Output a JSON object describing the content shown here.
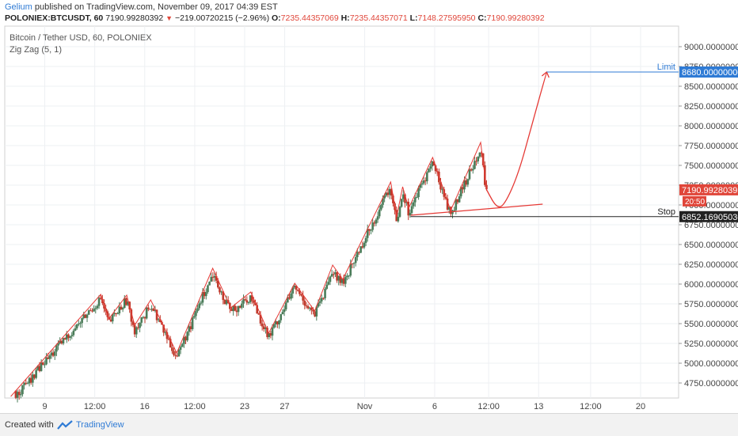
{
  "header": {
    "author": "Gelium",
    "published_text": "published on TradingView.com, November 09, 2017 04:39 EST",
    "symbol": "POLONIEX:BTCUSDT, 60",
    "last_price": "7190.99280392",
    "change_arrow": "▼",
    "change": "−219.00720215 (−2.96%)",
    "o_label": "O:",
    "o_value": "7235.44357069",
    "h_label": "H:",
    "h_value": "7235.44357071",
    "l_label": "L:",
    "l_value": "7148.27595950",
    "c_label": "C:",
    "c_value": "7190.99280392"
  },
  "legend": {
    "series": "Bitcoin / Tether USD, 60, POLONIEX",
    "indicator": "Zig Zag (5, 1)"
  },
  "footer": {
    "created_with": "Created with",
    "brand": "TradingView"
  },
  "colors": {
    "up": "#4a7c59",
    "down": "#c0392b",
    "zigzag": "#e53935",
    "limit": "#2f7bd5",
    "stop": "#222222",
    "last": "#e0463a"
  },
  "chart_data": {
    "type": "line",
    "title": "Bitcoin / Tether USD, 60, POLONIEX",
    "ylim": [
      4580,
      9120
    ],
    "y_ticks": [
      {
        "v": 9000,
        "label": "9000.00000000"
      },
      {
        "v": 8750,
        "label": "8750.00000000"
      },
      {
        "v": 8500,
        "label": "8500.00000000"
      },
      {
        "v": 8250,
        "label": "8250.00000000"
      },
      {
        "v": 8000,
        "label": "8000.00000000"
      },
      {
        "v": 7750,
        "label": "7750.00000000"
      },
      {
        "v": 7500,
        "label": "7500.00000000"
      },
      {
        "v": 7250,
        "label": "7250.00000000"
      },
      {
        "v": 7000,
        "label": "7000.00000000"
      },
      {
        "v": 6750,
        "label": "6750.00000000"
      },
      {
        "v": 6500,
        "label": "6500.00000000"
      },
      {
        "v": 6250,
        "label": "6250.00000000"
      },
      {
        "v": 6000,
        "label": "6000.00000000"
      },
      {
        "v": 5750,
        "label": "5750.00000000"
      },
      {
        "v": 5500,
        "label": "5500.00000000"
      },
      {
        "v": 5250,
        "label": "5250.00000000"
      },
      {
        "v": 5000,
        "label": "5000.00000000"
      },
      {
        "v": 4750,
        "label": "4750.00000000"
      }
    ],
    "x_ticks": [
      {
        "t": 2,
        "label": "9"
      },
      {
        "t": 4.5,
        "label": "12:00"
      },
      {
        "t": 7,
        "label": "16"
      },
      {
        "t": 9.5,
        "label": "12:00"
      },
      {
        "t": 12,
        "label": "23"
      },
      {
        "t": 14,
        "label": "27"
      },
      {
        "t": 18,
        "label": "Nov"
      },
      {
        "t": 21.5,
        "label": "6"
      },
      {
        "t": 24.2,
        "label": "12:00"
      },
      {
        "t": 26.7,
        "label": "13"
      },
      {
        "t": 29.3,
        "label": "12:00"
      },
      {
        "t": 31.8,
        "label": "20"
      }
    ],
    "xlim": [
      0,
      33.7
    ],
    "zigzag": [
      {
        "t": 0.3,
        "v": 4580
      },
      {
        "t": 4.8,
        "v": 5870
      },
      {
        "t": 5.2,
        "v": 5560
      },
      {
        "t": 6.1,
        "v": 5860
      },
      {
        "t": 6.5,
        "v": 5480
      },
      {
        "t": 7.3,
        "v": 5800
      },
      {
        "t": 8.6,
        "v": 5130
      },
      {
        "t": 10.4,
        "v": 6200
      },
      {
        "t": 11.3,
        "v": 5700
      },
      {
        "t": 12.3,
        "v": 5900
      },
      {
        "t": 13.2,
        "v": 5380
      },
      {
        "t": 14.5,
        "v": 6010
      },
      {
        "t": 15.5,
        "v": 5660
      },
      {
        "t": 16.4,
        "v": 6240
      },
      {
        "t": 16.9,
        "v": 6060
      },
      {
        "t": 19.3,
        "v": 7290
      },
      {
        "t": 19.6,
        "v": 6850
      },
      {
        "t": 19.9,
        "v": 7230
      },
      {
        "t": 20.2,
        "v": 6960
      },
      {
        "t": 21.4,
        "v": 7600
      },
      {
        "t": 22.3,
        "v": 6930
      },
      {
        "t": 23.8,
        "v": 7790
      },
      {
        "t": 24.1,
        "v": 7190
      }
    ],
    "projection": [
      {
        "t": 24.1,
        "v": 7190
      },
      {
        "t": 24.6,
        "v": 6960
      },
      {
        "t": 25.0,
        "v": 7000
      },
      {
        "t": 25.7,
        "v": 7400
      },
      {
        "t": 26.4,
        "v": 8050
      },
      {
        "t": 27.1,
        "v": 8680
      }
    ],
    "trendline": [
      {
        "t": 20.3,
        "v": 6870
      },
      {
        "t": 26.9,
        "v": 7010
      }
    ],
    "lines": [
      {
        "name": "Limit",
        "value": 8680,
        "price_label": "8680.00000000",
        "t_start": 27.1
      },
      {
        "name": "Stop",
        "value": 6852.169,
        "price_label": "6852.16905030",
        "t_start": 20.3
      }
    ],
    "last": {
      "value": 7190.99,
      "price_label": "7190.99280392",
      "countdown": "20:50"
    },
    "candles_seed": 20171109
  }
}
